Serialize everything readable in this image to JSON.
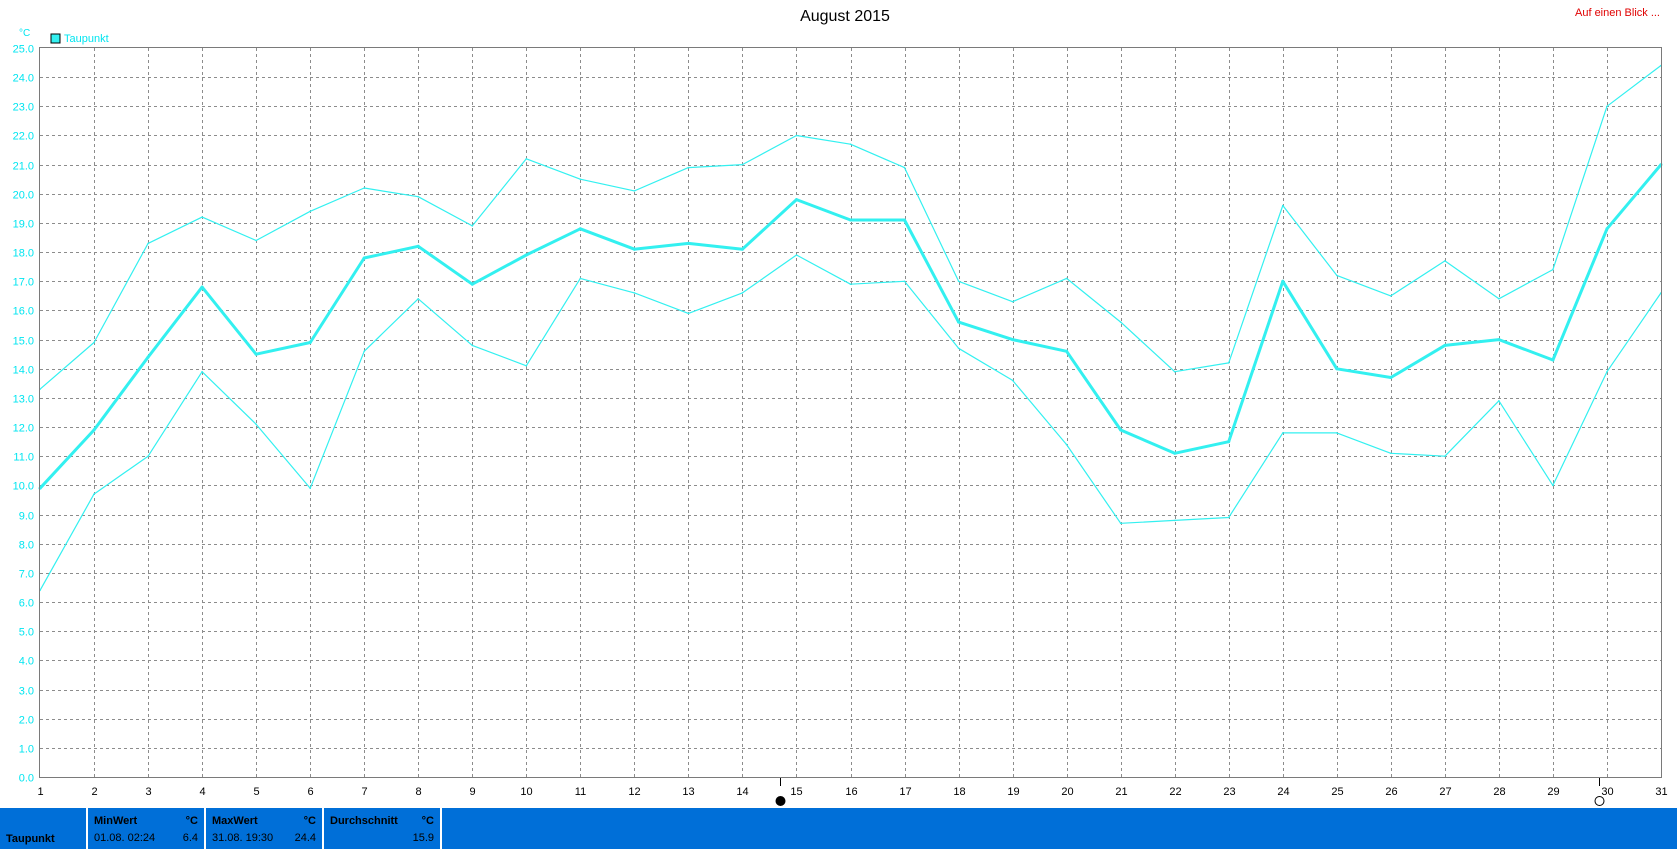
{
  "header": {
    "title": "August 2015",
    "link_label": "Auf einen Blick ..."
  },
  "chart_data": {
    "type": "line",
    "title": "August 2015",
    "ylabel": "°C",
    "xlabel": "",
    "ylim": [
      0,
      25
    ],
    "y_ticks": [
      "0.0",
      "1.0",
      "2.0",
      "3.0",
      "4.0",
      "5.0",
      "6.0",
      "7.0",
      "8.0",
      "9.0",
      "10.0",
      "11.0",
      "12.0",
      "13.0",
      "14.0",
      "15.0",
      "16.0",
      "17.0",
      "18.0",
      "19.0",
      "20.0",
      "21.0",
      "22.0",
      "23.0",
      "24.0",
      "25.0"
    ],
    "x": [
      1,
      2,
      3,
      4,
      5,
      6,
      7,
      8,
      9,
      10,
      11,
      12,
      13,
      14,
      15,
      16,
      17,
      18,
      19,
      20,
      21,
      22,
      23,
      24,
      25,
      26,
      27,
      28,
      29,
      30,
      31
    ],
    "grid": true,
    "legend": {
      "placement": "top-left",
      "entries": [
        "Taupunkt"
      ]
    },
    "series": [
      {
        "name": "Taupunkt",
        "role": "max",
        "color": "#33f0f0",
        "values": [
          13.3,
          14.9,
          18.3,
          19.2,
          18.4,
          19.4,
          20.2,
          19.9,
          18.9,
          21.2,
          20.5,
          20.1,
          20.9,
          21.0,
          22.0,
          21.7,
          20.9,
          17.0,
          16.3,
          17.1,
          15.6,
          13.9,
          14.2,
          19.6,
          17.2,
          16.5,
          17.7,
          16.4,
          17.4,
          23.0,
          24.4
        ]
      },
      {
        "name": "Taupunkt",
        "role": "avg",
        "color": "#33f0f0",
        "values": [
          9.9,
          11.9,
          14.4,
          16.8,
          14.5,
          14.9,
          17.8,
          18.2,
          16.9,
          17.9,
          18.8,
          18.1,
          18.3,
          18.1,
          19.8,
          19.1,
          19.1,
          15.6,
          15.0,
          14.6,
          11.9,
          11.1,
          11.5,
          17.0,
          14.0,
          13.7,
          14.8,
          15.0,
          14.3,
          18.8,
          21.0
        ]
      },
      {
        "name": "Taupunkt",
        "role": "min",
        "color": "#33f0f0",
        "values": [
          6.4,
          9.7,
          11.0,
          13.9,
          12.1,
          9.9,
          14.6,
          16.4,
          14.8,
          14.1,
          17.1,
          16.6,
          15.9,
          16.6,
          17.9,
          16.9,
          17.0,
          14.7,
          13.6,
          11.4,
          8.7,
          8.8,
          8.9,
          11.8,
          11.8,
          11.1,
          11.0,
          12.9,
          10.0,
          13.9,
          16.6
        ]
      }
    ],
    "moon_markers": [
      {
        "x": 14.7,
        "phase": "new-moon-icon"
      },
      {
        "x": 29.85,
        "phase": "full-moon-icon"
      }
    ]
  },
  "stats": {
    "row_label": "Taupunkt",
    "min": {
      "label": "MinWert",
      "unit": "°C",
      "date": "01.08.  02:24",
      "value": "6.4"
    },
    "max": {
      "label": "MaxWert",
      "unit": "°C",
      "date": "31.08.  19:30",
      "value": "24.4"
    },
    "avg": {
      "label": "Durchschnitt",
      "unit": "°C",
      "value": "15.9"
    }
  }
}
